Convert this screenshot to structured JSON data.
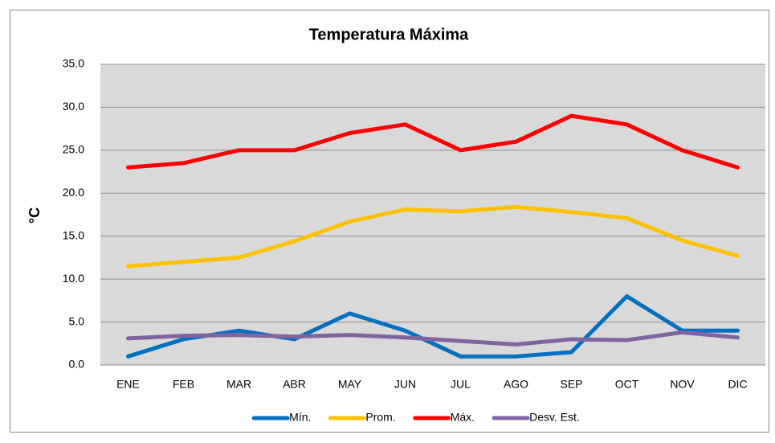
{
  "chart_data": {
    "type": "line",
    "title": "Temperatura Máxima",
    "y_label": "°C",
    "categories": [
      "ENE",
      "FEB",
      "MAR",
      "ABR",
      "MAY",
      "JUN",
      "JUL",
      "AGO",
      "SEP",
      "OCT",
      "NOV",
      "DIC"
    ],
    "series": [
      {
        "name": "Mín.",
        "color": "#0070c0",
        "values": [
          1,
          3,
          4,
          3,
          6,
          4,
          1,
          1,
          1.5,
          8,
          4,
          4
        ]
      },
      {
        "name": "Prom.",
        "color": "#ffc000",
        "values": [
          11.5,
          12,
          12.5,
          14.4,
          16.7,
          18.1,
          17.9,
          18.4,
          17.8,
          17.1,
          14.5,
          12.7
        ]
      },
      {
        "name": "Máx.",
        "color": "#ff0000",
        "values": [
          23,
          23.5,
          25,
          25,
          27,
          28,
          25,
          26,
          29,
          28,
          25,
          23
        ]
      },
      {
        "name": "Desv. Est.",
        "color": "#8064a2",
        "values": [
          3.1,
          3.4,
          3.5,
          3.3,
          3.5,
          3.2,
          2.8,
          2.4,
          3.0,
          2.9,
          3.8,
          3.2
        ]
      }
    ],
    "ylim": [
      0,
      35
    ],
    "yticks": [
      {
        "value": 0,
        "label": "0.0"
      },
      {
        "value": 5,
        "label": "5.0"
      },
      {
        "value": 10,
        "label": "10.0"
      },
      {
        "value": 15,
        "label": "15.0"
      },
      {
        "value": 20,
        "label": "20.0"
      },
      {
        "value": 25,
        "label": "25.0"
      },
      {
        "value": 30,
        "label": "30.0"
      },
      {
        "value": 35,
        "label": "35.0"
      }
    ],
    "grid": true,
    "legend": "bottom"
  }
}
